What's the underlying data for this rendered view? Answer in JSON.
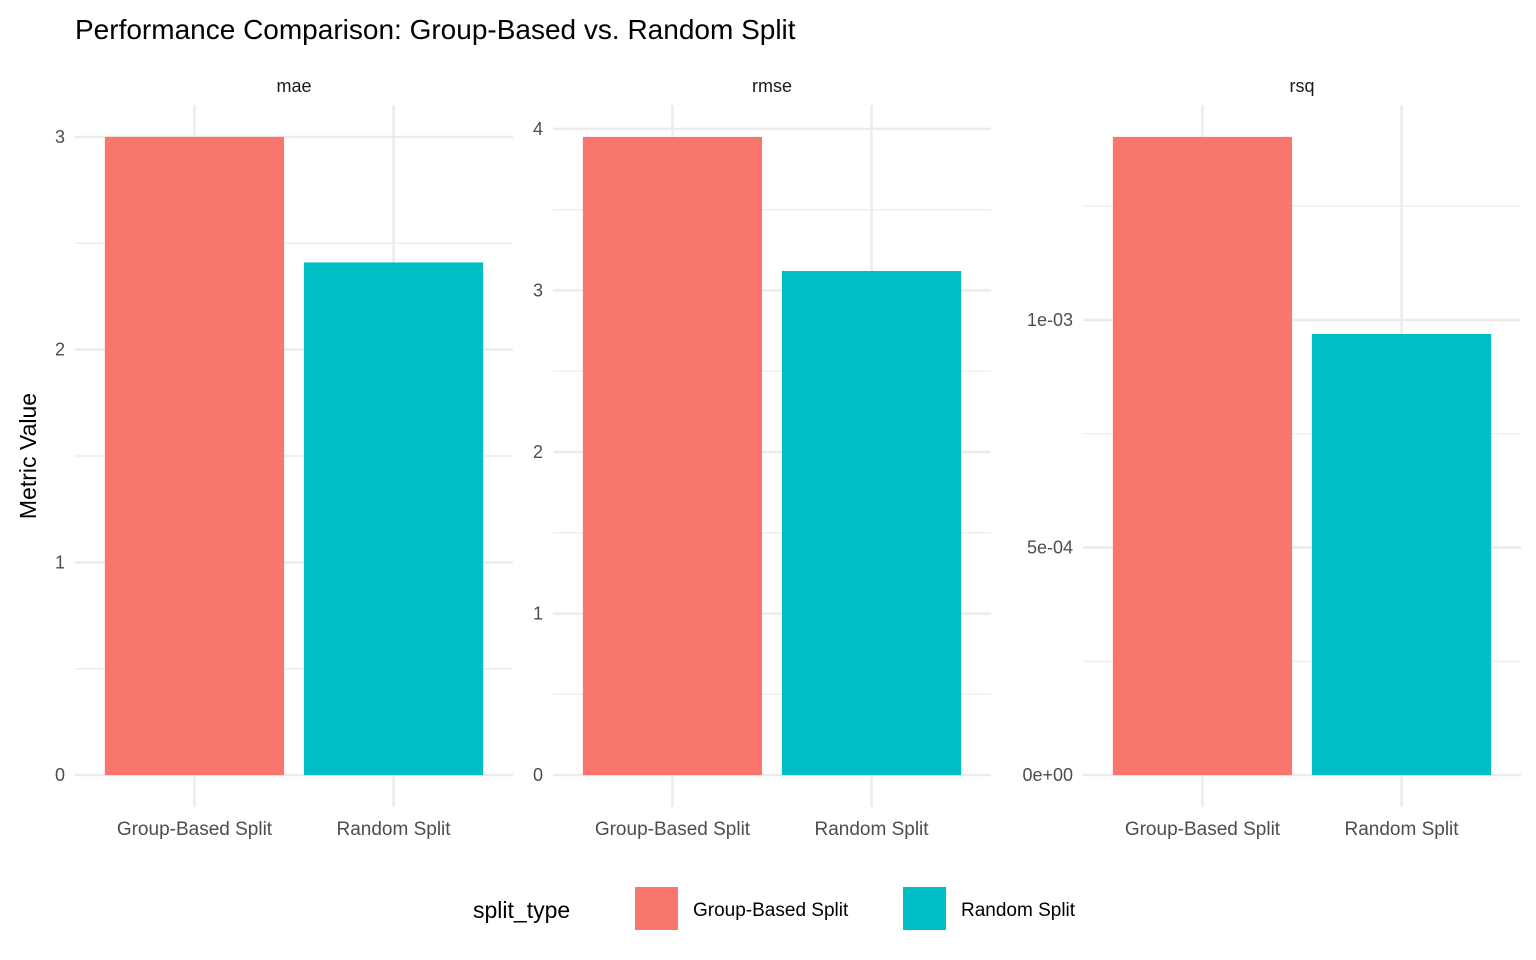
{
  "chart_data": {
    "type": "bar",
    "title": "Performance Comparison: Group-Based vs. Random Split",
    "ylabel": "Metric Value",
    "xlabel": "",
    "grid": true,
    "legend": {
      "title": "split_type",
      "position": "bottom",
      "entries": [
        "Group-Based Split",
        "Random Split"
      ]
    },
    "colors": {
      "Group-Based Split": "#F8766D",
      "Random Split": "#00BFC4"
    },
    "categories": [
      "Group-Based Split",
      "Random Split"
    ],
    "panels": [
      {
        "name": "mae",
        "values": [
          3.0,
          2.41
        ],
        "ylim": [
          0,
          3.0
        ],
        "ticks": [
          0,
          1,
          2,
          3
        ],
        "tick_labels": [
          "0",
          "1",
          "2",
          "3"
        ]
      },
      {
        "name": "rmse",
        "values": [
          3.95,
          3.12
        ],
        "ylim": [
          0,
          3.95
        ],
        "ticks": [
          0,
          1,
          2,
          3,
          4
        ],
        "tick_labels": [
          "0",
          "1",
          "2",
          "3",
          "4"
        ]
      },
      {
        "name": "rsq",
        "values": [
          0.001402,
          0.000969
        ],
        "ylim": [
          0,
          0.001402
        ],
        "ticks": [
          0,
          0.0005,
          0.001
        ],
        "tick_labels": [
          "0e+00",
          "5e-04",
          "1e-03"
        ]
      }
    ]
  }
}
